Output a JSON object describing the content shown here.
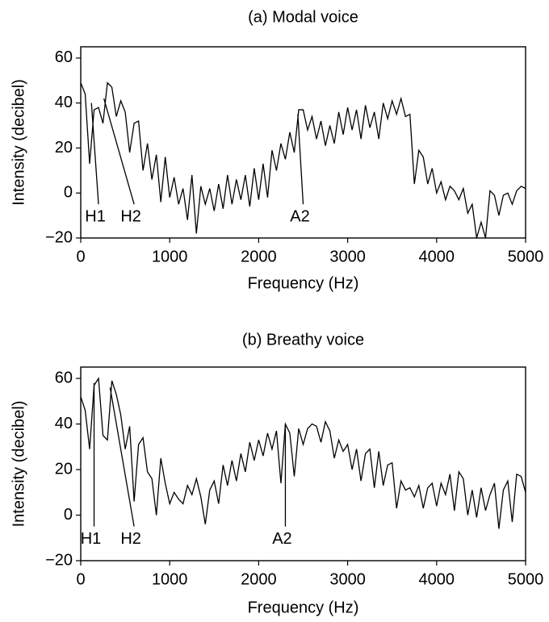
{
  "chart_data": [
    {
      "type": "line",
      "title": "(a) Modal voice",
      "xlabel": "Frequency (Hz)",
      "ylabel": "Intensity (decibel)",
      "xlim": [
        0,
        5000
      ],
      "ylim": [
        -20,
        65
      ],
      "xticks": [
        0,
        1000,
        2000,
        3000,
        4000,
        5000
      ],
      "yticks": [
        {
          "value": -20,
          "label": "−20"
        },
        0,
        20,
        40,
        60
      ],
      "color": "#000000",
      "x": [
        0,
        50,
        100,
        150,
        200,
        250,
        300,
        350,
        400,
        450,
        500,
        550,
        600,
        650,
        700,
        750,
        800,
        850,
        900,
        950,
        1000,
        1050,
        1100,
        1150,
        1200,
        1250,
        1300,
        1350,
        1400,
        1450,
        1500,
        1550,
        1600,
        1650,
        1700,
        1750,
        1800,
        1850,
        1900,
        1950,
        2000,
        2050,
        2100,
        2150,
        2200,
        2250,
        2300,
        2350,
        2400,
        2450,
        2500,
        2550,
        2600,
        2650,
        2700,
        2750,
        2800,
        2850,
        2900,
        2950,
        3000,
        3050,
        3100,
        3150,
        3200,
        3250,
        3300,
        3350,
        3400,
        3450,
        3500,
        3550,
        3600,
        3650,
        3700,
        3750,
        3800,
        3850,
        3900,
        3950,
        4000,
        4050,
        4100,
        4150,
        4200,
        4250,
        4300,
        4350,
        4400,
        4450,
        4500,
        4550,
        4600,
        4650,
        4700,
        4750,
        4800,
        4850,
        4900,
        4950,
        5000
      ],
      "values": [
        49,
        44,
        13,
        37,
        38,
        31,
        49,
        47,
        34,
        41,
        36,
        18,
        31,
        32,
        10,
        22,
        6,
        17,
        -4,
        16,
        -2,
        7,
        -5,
        2,
        -12,
        8,
        -18,
        3,
        -5,
        2,
        -8,
        4,
        -7,
        8,
        -5,
        6,
        -3,
        8,
        -6,
        11,
        -3,
        13,
        -2,
        19,
        10,
        22,
        15,
        27,
        18,
        37,
        37,
        28,
        34,
        24,
        32,
        21,
        30,
        22,
        36,
        26,
        38,
        28,
        37,
        24,
        39,
        29,
        36,
        24,
        40,
        33,
        41,
        35,
        42,
        34,
        35,
        4,
        19,
        16,
        4,
        11,
        0,
        5,
        -3,
        3,
        1,
        -3,
        2,
        -9,
        -5,
        -20,
        -13,
        -20,
        1,
        -1,
        -10,
        -1,
        0,
        -5,
        1,
        3,
        2
      ],
      "annotations": [
        {
          "text": "H1",
          "xy": [
            120,
            40
          ],
          "xytext": [
            200,
            -5
          ]
        },
        {
          "text": "H2",
          "xy": [
            260,
            42
          ],
          "xytext": [
            600,
            -5
          ]
        },
        {
          "text": "A2",
          "xy": [
            2440,
            35
          ],
          "xytext": [
            2500,
            -5
          ]
        }
      ]
    },
    {
      "type": "line",
      "title": "(b) Breathy voice",
      "xlabel": "Frequency (Hz)",
      "ylabel": "Intensity (decibel)",
      "xlim": [
        0,
        5000
      ],
      "ylim": [
        -20,
        65
      ],
      "xticks": [
        0,
        1000,
        2000,
        3000,
        4000,
        5000
      ],
      "yticks": [
        {
          "value": -20,
          "label": "−20"
        },
        0,
        20,
        40,
        60
      ],
      "color": "#000000",
      "x": [
        0,
        50,
        100,
        150,
        200,
        250,
        300,
        350,
        400,
        450,
        500,
        550,
        600,
        650,
        700,
        750,
        800,
        850,
        900,
        950,
        1000,
        1050,
        1100,
        1150,
        1200,
        1250,
        1300,
        1350,
        1400,
        1450,
        1500,
        1550,
        1600,
        1650,
        1700,
        1750,
        1800,
        1850,
        1900,
        1950,
        2000,
        2050,
        2100,
        2150,
        2200,
        2250,
        2300,
        2350,
        2400,
        2450,
        2500,
        2550,
        2600,
        2650,
        2700,
        2750,
        2800,
        2850,
        2900,
        2950,
        3000,
        3050,
        3100,
        3150,
        3200,
        3250,
        3300,
        3350,
        3400,
        3450,
        3500,
        3550,
        3600,
        3650,
        3700,
        3750,
        3800,
        3850,
        3900,
        3950,
        4000,
        4050,
        4100,
        4150,
        4200,
        4250,
        4300,
        4350,
        4400,
        4450,
        4500,
        4550,
        4600,
        4650,
        4700,
        4750,
        4800,
        4850,
        4900,
        4950,
        5000
      ],
      "values": [
        52,
        46,
        29,
        57,
        60,
        35,
        33,
        59,
        53,
        44,
        29,
        39,
        6,
        31,
        34,
        19,
        16,
        0,
        25,
        14,
        5,
        10,
        7,
        5,
        13,
        9,
        16,
        8,
        -4,
        11,
        15,
        5,
        22,
        13,
        24,
        15,
        27,
        19,
        32,
        24,
        33,
        26,
        36,
        29,
        37,
        14,
        40,
        36,
        17,
        38,
        31,
        38,
        40,
        39,
        32,
        41,
        37,
        25,
        33,
        28,
        31,
        20,
        29,
        15,
        27,
        29,
        12,
        28,
        13,
        22,
        23,
        3,
        15,
        11,
        12,
        8,
        13,
        3,
        12,
        14,
        4,
        14,
        9,
        18,
        2,
        19,
        16,
        0,
        11,
        -1,
        12,
        2,
        9,
        14,
        -6,
        11,
        15,
        -3,
        18,
        17,
        10
      ],
      "annotations": [
        {
          "text": "H1",
          "xy": [
            150,
            58
          ],
          "xytext": [
            150,
            -5
          ]
        },
        {
          "text": "H2",
          "xy": [
            330,
            56
          ],
          "xytext": [
            600,
            -5
          ]
        },
        {
          "text": "A2",
          "xy": [
            2300,
            40
          ],
          "xytext": [
            2300,
            -5
          ]
        }
      ]
    }
  ]
}
